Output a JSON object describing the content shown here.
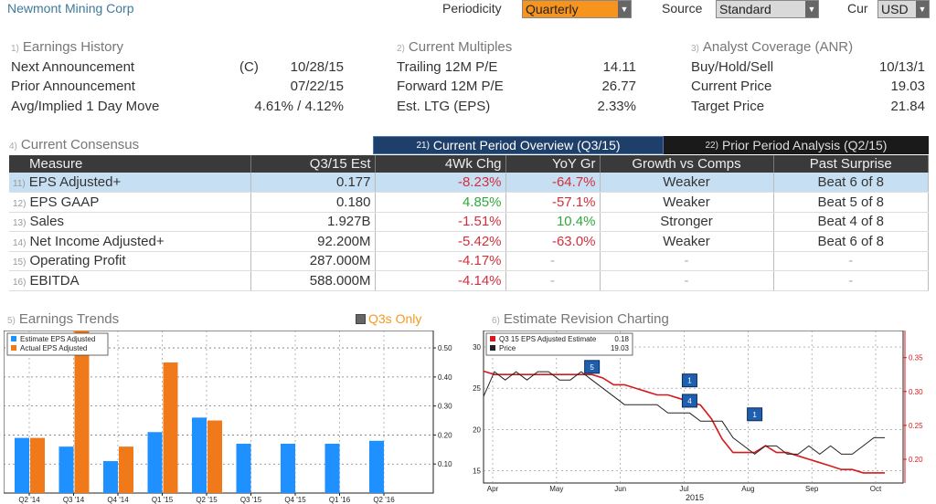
{
  "header": {
    "title": "Newmont Mining Corp",
    "periodicity_label": "Periodicity",
    "periodicity_value": "Quarterly",
    "source_label": "Source",
    "source_value": "Standard",
    "currency_label": "Cur",
    "currency_value": "USD"
  },
  "earnings_history": {
    "num": "1)",
    "title": "Earnings History",
    "rows": [
      {
        "label": "Next Announcement",
        "prefix": "(C)",
        "value": "10/28/15"
      },
      {
        "label": "Prior Announcement",
        "prefix": "",
        "value": "07/22/15"
      },
      {
        "label": "Avg/Implied 1 Day Move",
        "prefix": "",
        "value": "4.61% / 4.12%"
      }
    ]
  },
  "current_multiples": {
    "num": "2)",
    "title": "Current Multiples",
    "rows": [
      {
        "label": "Trailing 12M P/E",
        "value": "14.11"
      },
      {
        "label": "Forward 12M P/E",
        "value": "26.77"
      },
      {
        "label": "Est. LTG (EPS)",
        "value": "2.33%"
      }
    ]
  },
  "analyst_coverage": {
    "num": "3)",
    "title": "Analyst Coverage (ANR)",
    "rows": [
      {
        "label": "Buy/Hold/Sell",
        "value": "10/13/1"
      },
      {
        "label": "Current Price",
        "value": "19.03"
      },
      {
        "label": "Target Price",
        "value": "21.84"
      }
    ]
  },
  "consensus": {
    "num": "4)",
    "title": "Current Consensus",
    "tabs": [
      {
        "num": "21)",
        "label": "Current Period Overview (Q3/15)"
      },
      {
        "num": "22)",
        "label": "Prior Period Analysis (Q2/15)"
      }
    ],
    "columns": [
      "Measure",
      "Q3/15 Est",
      "4Wk Chg",
      "YoY Gr",
      "Growth vs Comps",
      "Past Surprise"
    ],
    "rows": [
      {
        "num": "11)",
        "measure": "EPS Adjusted+",
        "est": "0.177",
        "wk4": "-8.23%",
        "yoy": "-64.7%",
        "growth": "Weaker",
        "surprise": "Beat 6 of 8"
      },
      {
        "num": "12)",
        "measure": "EPS GAAP",
        "est": "0.180",
        "wk4": "4.85%",
        "yoy": "-57.1%",
        "growth": "Weaker",
        "surprise": "Beat 5 of 8"
      },
      {
        "num": "13)",
        "measure": "Sales",
        "est": "1.927B",
        "wk4": "-1.51%",
        "yoy": "10.4%",
        "growth": "Stronger",
        "surprise": "Beat 4 of 8"
      },
      {
        "num": "14)",
        "measure": "Net Income Adjusted+",
        "est": "92.200M",
        "wk4": "-5.42%",
        "yoy": "-63.0%",
        "growth": "Weaker",
        "surprise": "Beat 6 of 8"
      },
      {
        "num": "15)",
        "measure": "Operating Profit",
        "est": "287.000M",
        "wk4": "-4.17%",
        "yoy": "-",
        "growth": "-",
        "surprise": "-"
      },
      {
        "num": "16)",
        "measure": "EBITDA",
        "est": "588.000M",
        "wk4": "-4.14%",
        "yoy": "-",
        "growth": "-",
        "surprise": "-"
      }
    ]
  },
  "earnings_trends": {
    "num": "5)",
    "title": "Earnings Trends",
    "q3_toggle": "Q3s Only"
  },
  "estimate_revision": {
    "num": "6)",
    "title": "Estimate Revision Charting"
  },
  "colors": {
    "estimate_bar": "#1e90ff",
    "actual_bar": "#f07a1a",
    "estimate_line": "#d7191c",
    "price_line": "#222222"
  },
  "chart_data": [
    {
      "type": "bar",
      "categories": [
        "Q2 '14",
        "Q3 '14",
        "Q4 '14",
        "Q1 '15",
        "Q2 '15",
        "Q3 '15",
        "Q4 '15",
        "Q1 '16",
        "Q2 '16"
      ],
      "series": [
        {
          "name": "Estimate EPS Adjusted",
          "values": [
            0.19,
            0.16,
            0.11,
            0.21,
            0.26,
            0.17,
            0.17,
            0.17,
            0.18
          ]
        },
        {
          "name": "Actual EPS Adjusted",
          "values": [
            0.19,
            0.56,
            0.16,
            0.45,
            0.25,
            null,
            null,
            null,
            null
          ]
        }
      ],
      "ylim": [
        0,
        0.56
      ],
      "yticks": [
        0.1,
        0.2,
        0.3,
        0.4,
        0.5
      ],
      "ytick_labels": [
        "0.10",
        "0.20",
        "0.30",
        "0.40",
        "0.50"
      ],
      "grid": true,
      "legend": "top-left"
    },
    {
      "type": "line",
      "x_labels": [
        "Apr",
        "May",
        "Jun",
        "Jul",
        "Aug",
        "Sep",
        "Oct"
      ],
      "x_year_label": "2015",
      "left_axis": {
        "ylim": [
          13.5,
          32
        ],
        "ticks": [
          15,
          20,
          25,
          30
        ]
      },
      "right_axis": {
        "ylim": [
          0.165,
          0.39
        ],
        "ticks": [
          0.2,
          0.25,
          0.3,
          0.35
        ],
        "tick_labels": [
          "0.20",
          "0.25",
          "0.30",
          "0.35"
        ]
      },
      "legend": "top-left",
      "grid": true,
      "series": [
        {
          "name": "Q3 15 EPS Adjusted Estimate",
          "legend_value": "0.18",
          "axis": "right",
          "values": [
            0.33,
            0.325,
            0.325,
            0.325,
            0.325,
            0.325,
            0.325,
            0.325,
            0.325,
            0.325,
            0.325,
            0.32,
            0.31,
            0.31,
            0.305,
            0.3,
            0.295,
            0.295,
            0.29,
            0.285,
            0.28,
            0.26,
            0.23,
            0.21,
            0.21,
            0.21,
            0.22,
            0.21,
            0.21,
            0.205,
            0.2,
            0.195,
            0.19,
            0.185,
            0.185,
            0.18,
            0.18,
            0.18
          ]
        },
        {
          "name": "Price",
          "legend_value": "19.03",
          "axis": "left",
          "values": [
            24,
            27,
            26,
            27,
            26,
            27,
            27,
            26,
            26,
            27,
            26,
            25,
            24,
            23,
            23,
            23,
            23,
            22,
            22,
            22,
            21,
            21,
            21,
            19,
            18,
            17,
            18,
            18,
            17,
            17,
            18,
            17,
            18,
            17,
            17,
            18,
            19,
            19
          ]
        }
      ],
      "annotations": [
        {
          "label": "5",
          "x_index": 10,
          "axis": "right",
          "y": 0.335
        },
        {
          "label": "1",
          "x_index": 19,
          "axis": "right",
          "y": 0.315
        },
        {
          "label": "4",
          "x_index": 19,
          "axis": "right",
          "y": 0.285
        },
        {
          "label": "1",
          "x_index": 25,
          "axis": "right",
          "y": 0.265
        }
      ]
    }
  ]
}
